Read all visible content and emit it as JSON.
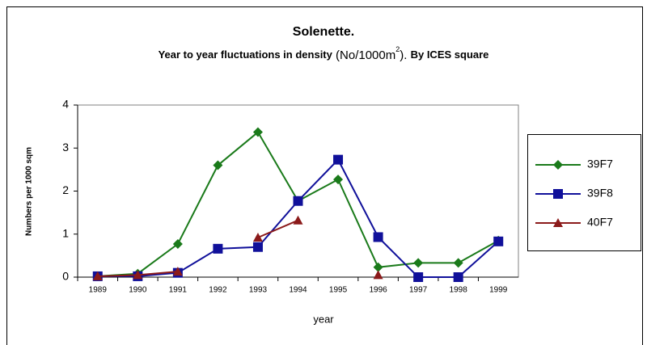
{
  "chart_data": {
    "type": "line",
    "title": "Solenette.",
    "subtitle": [
      "Year to year fluctuations in density",
      " (No/1000m",
      "2",
      "). ",
      "By ICES square"
    ],
    "xlabel": "year",
    "ylabel": "Numbers per 1000 sqm",
    "categories": [
      "1989",
      "1990",
      "1991",
      "1992",
      "1993",
      "1994",
      "1995",
      "1996",
      "1997",
      "1998",
      "1999"
    ],
    "series": [
      {
        "name": "39F7",
        "color": "#1a7a1a",
        "marker": "diamond",
        "values": [
          0.02,
          0.08,
          0.77,
          2.6,
          3.37,
          1.77,
          2.27,
          0.23,
          0.33,
          0.33,
          0.85
        ]
      },
      {
        "name": "39F8",
        "color": "#10109a",
        "marker": "square",
        "values": [
          0.02,
          0.02,
          0.1,
          0.66,
          0.7,
          1.77,
          2.73,
          0.93,
          0,
          0,
          0.83
        ]
      },
      {
        "name": "40F7",
        "color": "#8b1a1a",
        "marker": "triangle",
        "values": [
          0.02,
          0.05,
          0.13,
          null,
          0.92,
          1.32,
          null,
          0.05,
          null,
          null,
          null
        ]
      }
    ],
    "ylim": [
      0,
      4
    ],
    "yticks": [
      0,
      1,
      2,
      3,
      4
    ],
    "legend": "right"
  }
}
